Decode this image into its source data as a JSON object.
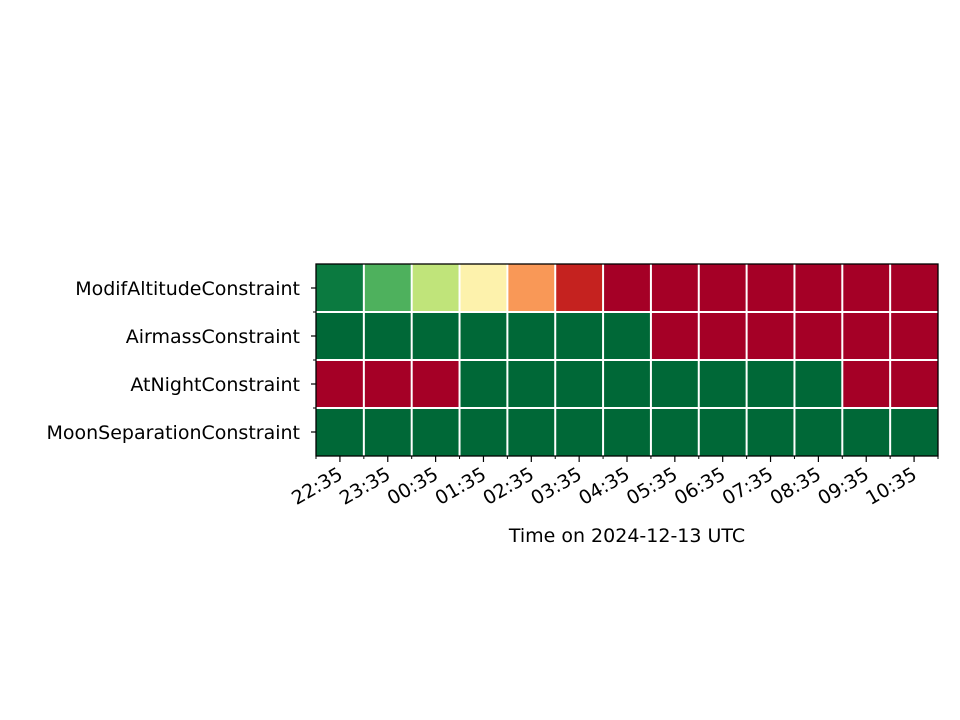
{
  "chart_data": {
    "type": "heatmap",
    "title": "",
    "xlabel": "Time on 2024-12-13 UTC",
    "ylabel": "",
    "rows": [
      "ModifAltitudeConstraint",
      "AirmassConstraint",
      "AtNightConstraint",
      "MoonSeparationConstraint"
    ],
    "x_tick_labels": [
      "22:35",
      "23:35",
      "00:35",
      "01:35",
      "02:35",
      "03:35",
      "04:35",
      "05:35",
      "06:35",
      "07:35",
      "08:35",
      "09:35",
      "10:35"
    ],
    "values": [
      [
        0.95,
        0.8,
        0.65,
        0.45,
        0.3,
        0.1,
        0,
        0,
        0,
        0,
        0,
        0,
        0
      ],
      [
        1,
        1,
        1,
        1,
        1,
        1,
        1,
        0,
        0,
        0,
        0,
        0,
        0
      ],
      [
        0,
        0,
        0,
        1,
        1,
        1,
        1,
        1,
        1,
        1,
        1,
        0,
        0
      ],
      [
        1,
        1,
        1,
        1,
        1,
        1,
        1,
        1,
        1,
        1,
        1,
        1,
        1
      ]
    ],
    "value_range": [
      0,
      1
    ],
    "colormap": "RdYlGn",
    "colors": {
      "0": "#a50026",
      "0.1": "#c5221f",
      "0.3": "#f99857",
      "0.45": "#fdf2ac",
      "0.65": "#c0e47a",
      "0.8": "#4eb15d",
      "0.95": "#0b7a40",
      "1": "#006837"
    },
    "grid": true,
    "legend": "none"
  }
}
